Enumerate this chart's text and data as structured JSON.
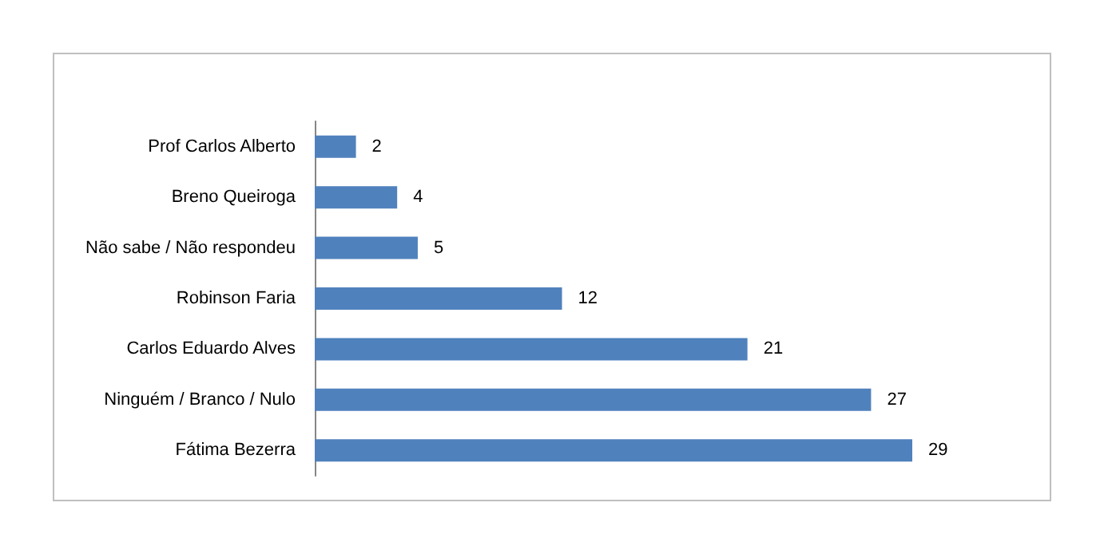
{
  "chart_data": {
    "type": "bar",
    "orientation": "horizontal",
    "categories": [
      "Prof Carlos Alberto",
      "Breno Queiroga",
      "Não sabe / Não respondeu",
      "Robinson Faria",
      "Carlos Eduardo Alves",
      "Ninguém / Branco / Nulo",
      "Fátima Bezerra"
    ],
    "values": [
      2,
      4,
      5,
      12,
      21,
      27,
      29
    ],
    "color": "#4f81bd",
    "data_labels": true
  }
}
